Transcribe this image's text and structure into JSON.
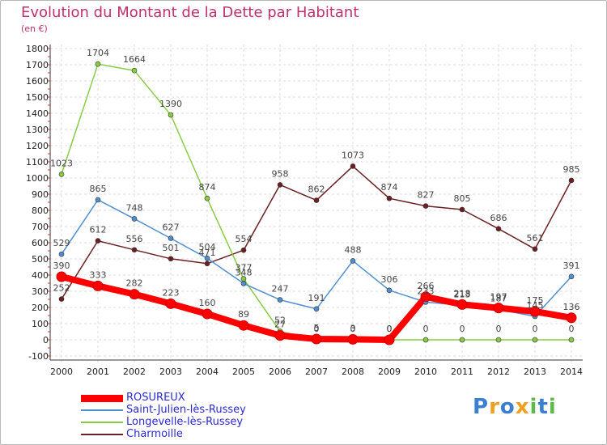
{
  "chart_data": {
    "type": "line",
    "title": "Evolution du Montant de la Dette par Habitant",
    "subtitle": "(en €)",
    "categories": [
      "2000",
      "2001",
      "2002",
      "2003",
      "2004",
      "2005",
      "2006",
      "2007",
      "2008",
      "2009",
      "2010",
      "2011",
      "2012",
      "2013",
      "2014"
    ],
    "yticks": [
      "-100",
      "0",
      "100",
      "200",
      "300",
      "400",
      "500",
      "600",
      "700",
      "800",
      "900",
      "1000",
      "1100",
      "1200",
      "1300",
      "1400",
      "1500",
      "1600",
      "1700",
      "1800"
    ],
    "ylim": [
      -100,
      1800
    ],
    "grid": true,
    "legend_position": "bottom-left",
    "series": [
      {
        "name": "ROSUREUX",
        "color": "#ff0000",
        "values": [
          390,
          333,
          282,
          223,
          160,
          89,
          27,
          5,
          3,
          0,
          266,
          218,
          197,
          175,
          136
        ]
      },
      {
        "name": "Saint-Julien-lès-Russey",
        "color": "#4f8fd0",
        "values": [
          529,
          865,
          748,
          627,
          504,
          348,
          247,
          191,
          488,
          306,
          233,
          213,
          187,
          145,
          391
        ]
      },
      {
        "name": "Longevelle-lès-Russey",
        "color": "#88cc44",
        "values": [
          1023,
          1704,
          1664,
          1390,
          874,
          377,
          52,
          0,
          0,
          0,
          0,
          0,
          0,
          0,
          0
        ]
      },
      {
        "name": "Charmoille",
        "color": "#6b1f22",
        "values": [
          252,
          612,
          556,
          501,
          471,
          554,
          958,
          862,
          1073,
          874,
          827,
          805,
          686,
          561,
          985
        ]
      }
    ]
  },
  "brand": {
    "letters": [
      "P",
      "r",
      "o",
      "x",
      "i",
      "t",
      "i"
    ],
    "colors": [
      "#3a7fd0",
      "#f0a020",
      "#3a7fd0",
      "#f0a020",
      "#5fb84a",
      "#3a7fd0",
      "#5fb84a"
    ]
  }
}
